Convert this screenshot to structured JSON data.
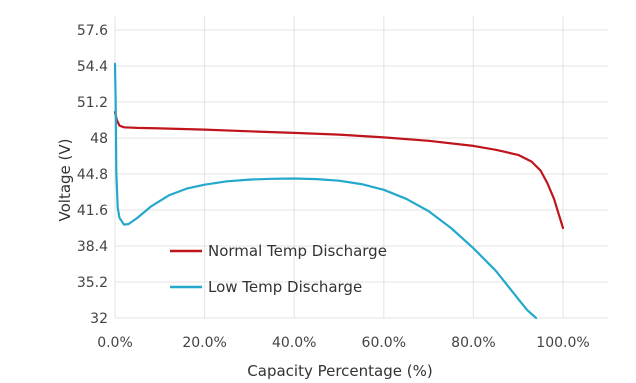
{
  "chart_data": {
    "type": "line",
    "title": "",
    "xlabel": "Capacity Percentage (%)",
    "ylabel": "Voltage  (V)",
    "xlim": [
      0,
      100
    ],
    "ylim": [
      32,
      57.6
    ],
    "x_ticks": [
      0,
      20,
      40,
      60,
      80,
      100
    ],
    "x_tick_labels": [
      "0.0%",
      "20.0%",
      "40.0%",
      "60.0%",
      "80.0%",
      "100.0%"
    ],
    "y_ticks": [
      32,
      35.2,
      38.4,
      41.6,
      44.8,
      48,
      51.2,
      54.4,
      57.6
    ],
    "y_tick_labels": [
      "32",
      "35.2",
      "38.4",
      "41.6",
      "44.8",
      "48",
      "51.2",
      "54.4",
      "57.6"
    ],
    "grid": true,
    "legend_position": "lower-left",
    "series": [
      {
        "name": "Normal Temp Discharge",
        "color": "#c0141c",
        "x": [
          0,
          0.4,
          1,
          2,
          5,
          10,
          20,
          30,
          40,
          50,
          60,
          70,
          80,
          85,
          90,
          93,
          95,
          96.5,
          98,
          99,
          100
        ],
        "y": [
          50.3,
          49.6,
          49.1,
          48.95,
          48.9,
          48.85,
          48.75,
          48.6,
          48.45,
          48.3,
          48.05,
          47.75,
          47.3,
          46.95,
          46.5,
          45.9,
          45.1,
          44.0,
          42.6,
          41.3,
          40.0
        ]
      },
      {
        "name": "Low Temp Discharge",
        "color": "#24a8cc",
        "x": [
          0,
          0.15,
          0.3,
          0.6,
          1,
          2,
          3,
          5,
          8,
          12,
          16,
          20,
          25,
          30,
          35,
          40,
          45,
          50,
          55,
          60,
          65,
          70,
          75,
          80,
          85,
          88,
          90,
          92,
          94
        ],
        "y": [
          54.6,
          51.0,
          45.0,
          41.8,
          40.9,
          40.3,
          40.35,
          40.9,
          41.9,
          42.9,
          43.5,
          43.85,
          44.15,
          44.3,
          44.37,
          44.4,
          44.35,
          44.2,
          43.9,
          43.4,
          42.6,
          41.5,
          40.0,
          38.2,
          36.2,
          34.7,
          33.7,
          32.7,
          32.0
        ]
      }
    ]
  }
}
